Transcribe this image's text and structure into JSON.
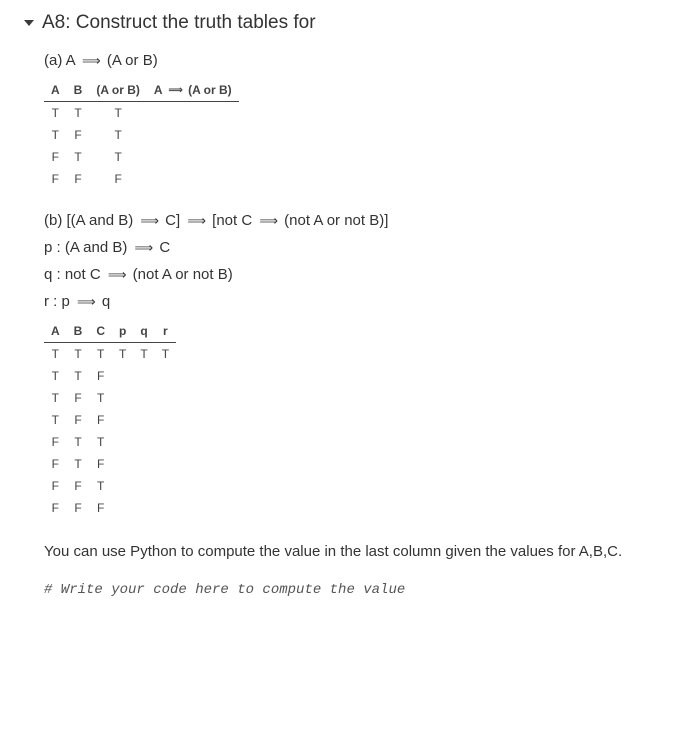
{
  "title": "A8: Construct the truth tables for",
  "partA": {
    "label_pre": "(a) A",
    "label_post": "(A or B)",
    "table": {
      "headers": [
        "A",
        "B",
        "(A or B)",
        "A ⟹ (A or B)"
      ],
      "rows": [
        [
          "T",
          "T",
          "T",
          ""
        ],
        [
          "T",
          "F",
          "T",
          ""
        ],
        [
          "F",
          "T",
          "T",
          ""
        ],
        [
          "F",
          "F",
          "F",
          ""
        ]
      ]
    }
  },
  "partB": {
    "label_full": "(b) [(A and B)  ⟹  C]  ⟹  [not C  ⟹  (not A or not B)]",
    "def_p": "p : (A and B)  ⟹  C",
    "def_q": "q : not C  ⟹  (not A or not B)",
    "def_r": "r : p  ⟹  q",
    "table": {
      "headers": [
        "A",
        "B",
        "C",
        "p",
        "q",
        "r"
      ],
      "rows": [
        [
          "T",
          "T",
          "T",
          "T",
          "T",
          "T"
        ],
        [
          "T",
          "T",
          "F",
          "",
          "",
          ""
        ],
        [
          "T",
          "F",
          "T",
          "",
          "",
          ""
        ],
        [
          "T",
          "F",
          "F",
          "",
          "",
          ""
        ],
        [
          "F",
          "T",
          "T",
          "",
          "",
          ""
        ],
        [
          "F",
          "T",
          "F",
          "",
          "",
          ""
        ],
        [
          "F",
          "F",
          "T",
          "",
          "",
          ""
        ],
        [
          "F",
          "F",
          "F",
          "",
          "",
          ""
        ]
      ]
    }
  },
  "note": "You can use Python to compute the value in the last column given the values for A,B,C.",
  "code": "# Write your code here to compute the value"
}
